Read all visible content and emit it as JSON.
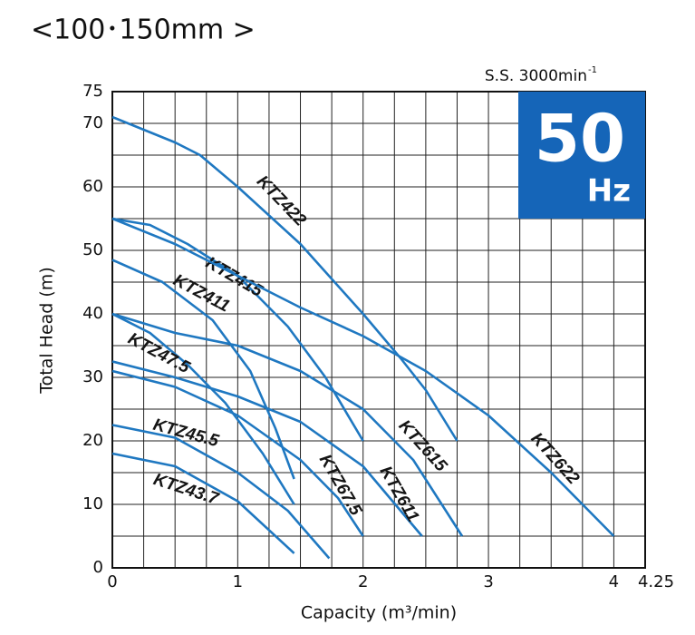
{
  "chart_data": {
    "type": "line",
    "title": "<100･150mm >",
    "speed_label": "S.S. 3000min",
    "speed_sup": "-1",
    "badge_number": "50",
    "badge_unit": "Hz",
    "badge_color": "#1565b8",
    "x_label": "Capacity (m³/min)",
    "y_label": "Total Head (m)",
    "xlim": [
      0,
      4.25
    ],
    "ylim": [
      0,
      75
    ],
    "xticks": [
      0,
      1,
      2,
      3,
      4,
      4.25
    ],
    "yticks": [
      0,
      10,
      20,
      30,
      40,
      50,
      60,
      70,
      75
    ],
    "xgrid": [
      0,
      0.25,
      0.5,
      0.75,
      1,
      1.25,
      1.5,
      1.75,
      2,
      2.25,
      2.5,
      2.75,
      3,
      3.25,
      3.5,
      3.75,
      4,
      4.25
    ],
    "ygrid": [
      0,
      5,
      10,
      15,
      20,
      25,
      30,
      35,
      40,
      45,
      50,
      55,
      60,
      65,
      70,
      75
    ],
    "grid": true,
    "series": [
      {
        "name": "KTZ422",
        "color": "#1f78c1",
        "x": [
          0,
          0.5,
          0.7,
          1,
          1.5,
          2,
          2.3,
          2.5,
          2.75
        ],
        "values": [
          71,
          67,
          65,
          60,
          51,
          40,
          33,
          28,
          20
        ]
      },
      {
        "name": "KTZ415",
        "color": "#1f78c1",
        "x": [
          0,
          0.3,
          0.6,
          1,
          1.4,
          1.7,
          2
        ],
        "values": [
          55,
          54,
          51,
          46,
          38,
          30,
          20
        ]
      },
      {
        "name": "KTZ411",
        "color": "#1f78c1",
        "x": [
          0,
          0.4,
          0.8,
          1.1,
          1.3,
          1.45
        ],
        "values": [
          48.5,
          45,
          39,
          31,
          22,
          14
        ]
      },
      {
        "name": "KTZ47.5",
        "color": "#1f78c1",
        "x": [
          0,
          0.3,
          0.6,
          0.9,
          1.2,
          1.45
        ],
        "values": [
          40,
          37,
          32,
          26,
          18,
          10
        ]
      },
      {
        "name": "KTZ45.5",
        "color": "#1f78c1",
        "x": [
          0,
          0.5,
          1,
          1.4,
          1.73
        ],
        "values": [
          22.5,
          20.5,
          15,
          9,
          1.5
        ]
      },
      {
        "name": "KTZ43.7",
        "color": "#1f78c1",
        "x": [
          0,
          0.5,
          1,
          1.45
        ],
        "values": [
          18,
          16,
          10.5,
          2.3
        ]
      },
      {
        "name": "KTZ67.5",
        "color": "#1f78c1",
        "x": [
          0,
          0.5,
          1,
          1.5,
          1.8,
          2
        ],
        "values": [
          31,
          28.5,
          24,
          17,
          11,
          5
        ]
      },
      {
        "name": "KTZ611",
        "color": "#1f78c1",
        "x": [
          0,
          0.5,
          1,
          1.5,
          2,
          2.47
        ],
        "values": [
          32.5,
          30,
          27,
          23,
          16,
          5
        ]
      },
      {
        "name": "KTZ615",
        "color": "#1f78c1",
        "x": [
          0,
          0.5,
          1,
          1.5,
          2,
          2.4,
          2.79
        ],
        "values": [
          40,
          37,
          35,
          31,
          25,
          17,
          5
        ]
      },
      {
        "name": "KTZ622",
        "color": "#1f78c1",
        "x": [
          0,
          0.5,
          1,
          1.5,
          2,
          2.5,
          3,
          3.5,
          4
        ],
        "values": [
          55,
          51,
          46,
          41,
          36.5,
          31,
          24,
          15,
          5
        ]
      }
    ]
  }
}
